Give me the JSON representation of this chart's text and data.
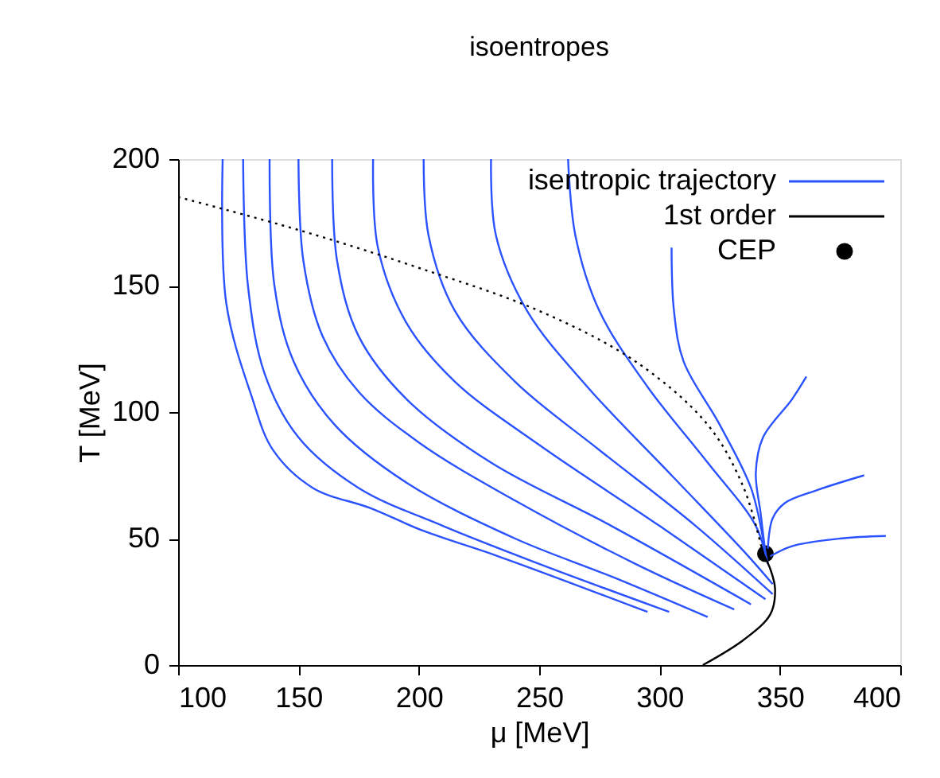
{
  "chart_data": {
    "type": "line",
    "title": "isoentropes",
    "xlabel": "μ [MeV]",
    "ylabel": "T [MeV]",
    "xlim": [
      100,
      400
    ],
    "xticks": [
      100,
      150,
      200,
      250,
      300,
      350,
      400
    ],
    "ylim": [
      0,
      200
    ],
    "yticks": [
      0,
      50,
      100,
      150,
      200
    ],
    "grid": false,
    "legend": "top right",
    "series": [
      {
        "name": "isentropic trajectory",
        "color": "#2a52ff",
        "x": [
          118.5,
          120,
          130.6,
          139.4,
          156,
          180,
          202,
          233,
          295
        ],
        "values": [
          200,
          143,
          106,
          85,
          70,
          62,
          53,
          43,
          21
        ]
      },
      {
        "color": "#2a52ff",
        "x": [
          127,
          129,
          136,
          150,
          175,
          210,
          250,
          304
        ],
        "values": [
          200,
          150,
          115,
          90,
          70,
          55,
          40,
          21
        ]
      },
      {
        "color": "#2a52ff",
        "x": [
          138,
          140,
          148,
          165,
          195,
          240,
          280,
          320
        ],
        "values": [
          200,
          150,
          120,
          95,
          72,
          50,
          35,
          19
        ]
      },
      {
        "color": "#2a52ff",
        "x": [
          150,
          152,
          160,
          175,
          200,
          240,
          290,
          331
        ],
        "values": [
          200,
          160,
          130,
          108,
          88,
          65,
          40,
          22
        ]
      },
      {
        "color": "#2a52ff",
        "x": [
          164,
          166,
          175,
          195,
          230,
          280,
          338
        ],
        "values": [
          200,
          160,
          130,
          105,
          80,
          55,
          24
        ]
      },
      {
        "color": "#2a52ff",
        "x": [
          181,
          183,
          195,
          215,
          250,
          300,
          344
        ],
        "values": [
          200,
          165,
          135,
          112,
          87,
          55,
          26
        ]
      },
      {
        "color": "#2a52ff",
        "x": [
          202,
          204,
          215,
          240,
          275,
          315,
          347
        ],
        "values": [
          200,
          170,
          140,
          112,
          85,
          55,
          28
        ]
      },
      {
        "color": "#2a52ff",
        "x": [
          230,
          232,
          245,
          270,
          305,
          335,
          347
        ],
        "values": [
          200,
          170,
          140,
          110,
          75,
          45,
          32
        ]
      },
      {
        "color": "#2a52ff",
        "x": [
          262,
          265,
          275,
          295,
          320,
          340,
          345
        ],
        "values": [
          200,
          170,
          140,
          110,
          80,
          55,
          40
        ]
      },
      {
        "color": "#2a52ff",
        "x": [
          305,
          306,
          310,
          325,
          338,
          343,
          344
        ],
        "values": [
          165,
          140,
          120,
          95,
          70,
          50,
          44
        ]
      },
      {
        "color": "#2a52ff",
        "x": [
          344,
          342,
          340,
          343,
          355,
          361
        ],
        "values": [
          44,
          60,
          76,
          90,
          105,
          114
        ]
      },
      {
        "color": "#2a52ff",
        "x": [
          345,
          347,
          352,
          365,
          385
        ],
        "values": [
          46,
          58,
          64,
          69,
          75
        ]
      },
      {
        "color": "#2a52ff",
        "x": [
          346,
          355,
          375,
          394
        ],
        "values": [
          43,
          47,
          50,
          51
        ]
      },
      {
        "color": "#000000",
        "line_style": "dotted",
        "x": [
          100,
          150,
          200,
          250,
          290,
          320,
          335,
          343
        ],
        "values": [
          185,
          172,
          157,
          140,
          120,
          95,
          70,
          44
        ]
      },
      {
        "name": "1st order",
        "color": "#000000",
        "x": [
          343,
          346,
          348,
          346,
          335,
          318
        ],
        "values": [
          44,
          38,
          30,
          20,
          10,
          0
        ]
      },
      {
        "name": "CEP",
        "type": "scatter",
        "marker": "circle",
        "color": "#000000",
        "x": [
          344
        ],
        "values": [
          44
        ]
      }
    ]
  }
}
